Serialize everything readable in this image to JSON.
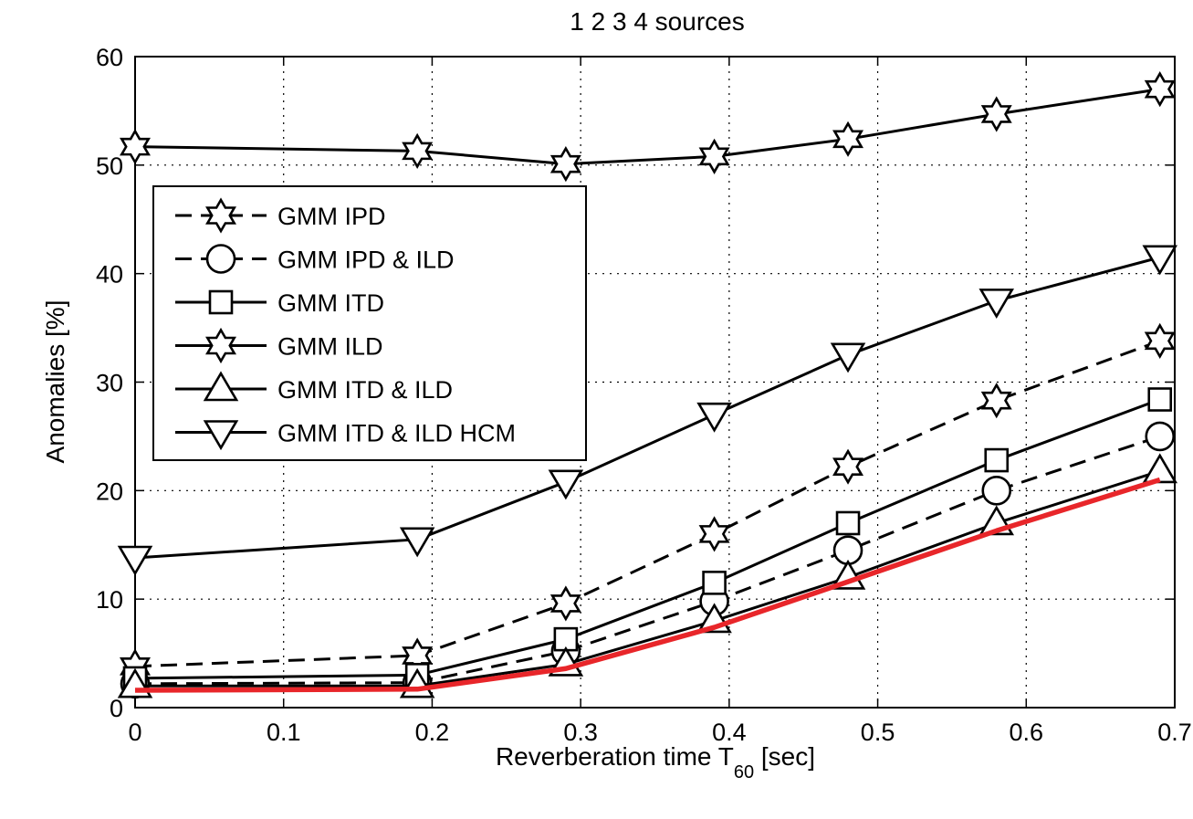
{
  "chart_data": {
    "type": "line",
    "title": "1  2  3  4 sources",
    "xlabel_main": "Reverberation time T",
    "xlabel_sub": "60",
    "xlabel_unit": " [sec]",
    "ylabel": "Anomalies [%]",
    "xlim": [
      0,
      0.7
    ],
    "ylim": [
      0,
      60
    ],
    "xticks": [
      0,
      0.1,
      0.2,
      0.3,
      0.4,
      0.5,
      0.6,
      0.7
    ],
    "xtick_labels": [
      "0",
      "0.1",
      "0.2",
      "0.3",
      "0.4",
      "0.5",
      "0.6",
      "0.7"
    ],
    "yticks": [
      0,
      10,
      20,
      30,
      40,
      50,
      60
    ],
    "ytick_labels": [
      "0",
      "10",
      "20",
      "30",
      "40",
      "50",
      "60"
    ],
    "grid": true,
    "legend_position": "left-middle",
    "x": [
      0,
      0.19,
      0.29,
      0.39,
      0.48,
      0.58,
      0.69
    ],
    "series": [
      {
        "name": "GMM IPD",
        "marker": "hexagram",
        "dash": true,
        "color": "#000000",
        "values": [
          3.8,
          4.8,
          9.6,
          16.0,
          22.2,
          28.3,
          33.8
        ]
      },
      {
        "name": "GMM IPD & ILD",
        "marker": "circle",
        "dash": true,
        "color": "#000000",
        "values": [
          2.2,
          2.3,
          5.2,
          9.8,
          14.5,
          20.0,
          25.0
        ]
      },
      {
        "name": "GMM ITD",
        "marker": "square",
        "dash": false,
        "color": "#000000",
        "values": [
          2.7,
          3.0,
          6.3,
          11.5,
          17.0,
          22.8,
          28.4
        ]
      },
      {
        "name": "GMM ILD",
        "marker": "hexagram",
        "dash": false,
        "color": "#000000",
        "values": [
          51.7,
          51.3,
          50.1,
          50.8,
          52.4,
          54.7,
          57.0
        ]
      },
      {
        "name": "GMM ITD & ILD",
        "marker": "triangle-up",
        "dash": false,
        "color": "#000000",
        "values": [
          2.0,
          2.0,
          4.0,
          8.0,
          12.0,
          17.0,
          21.8
        ]
      },
      {
        "name": "GMM ITD & ILD HCM",
        "marker": "triangle-down",
        "dash": false,
        "color": "#000000",
        "values": [
          13.8,
          15.5,
          20.8,
          27.0,
          32.5,
          37.5,
          41.5
        ]
      }
    ],
    "baseline": {
      "color": "#e8262a",
      "values": [
        1.6,
        1.7,
        3.6,
        7.4,
        11.6,
        16.3,
        21.0
      ]
    }
  }
}
